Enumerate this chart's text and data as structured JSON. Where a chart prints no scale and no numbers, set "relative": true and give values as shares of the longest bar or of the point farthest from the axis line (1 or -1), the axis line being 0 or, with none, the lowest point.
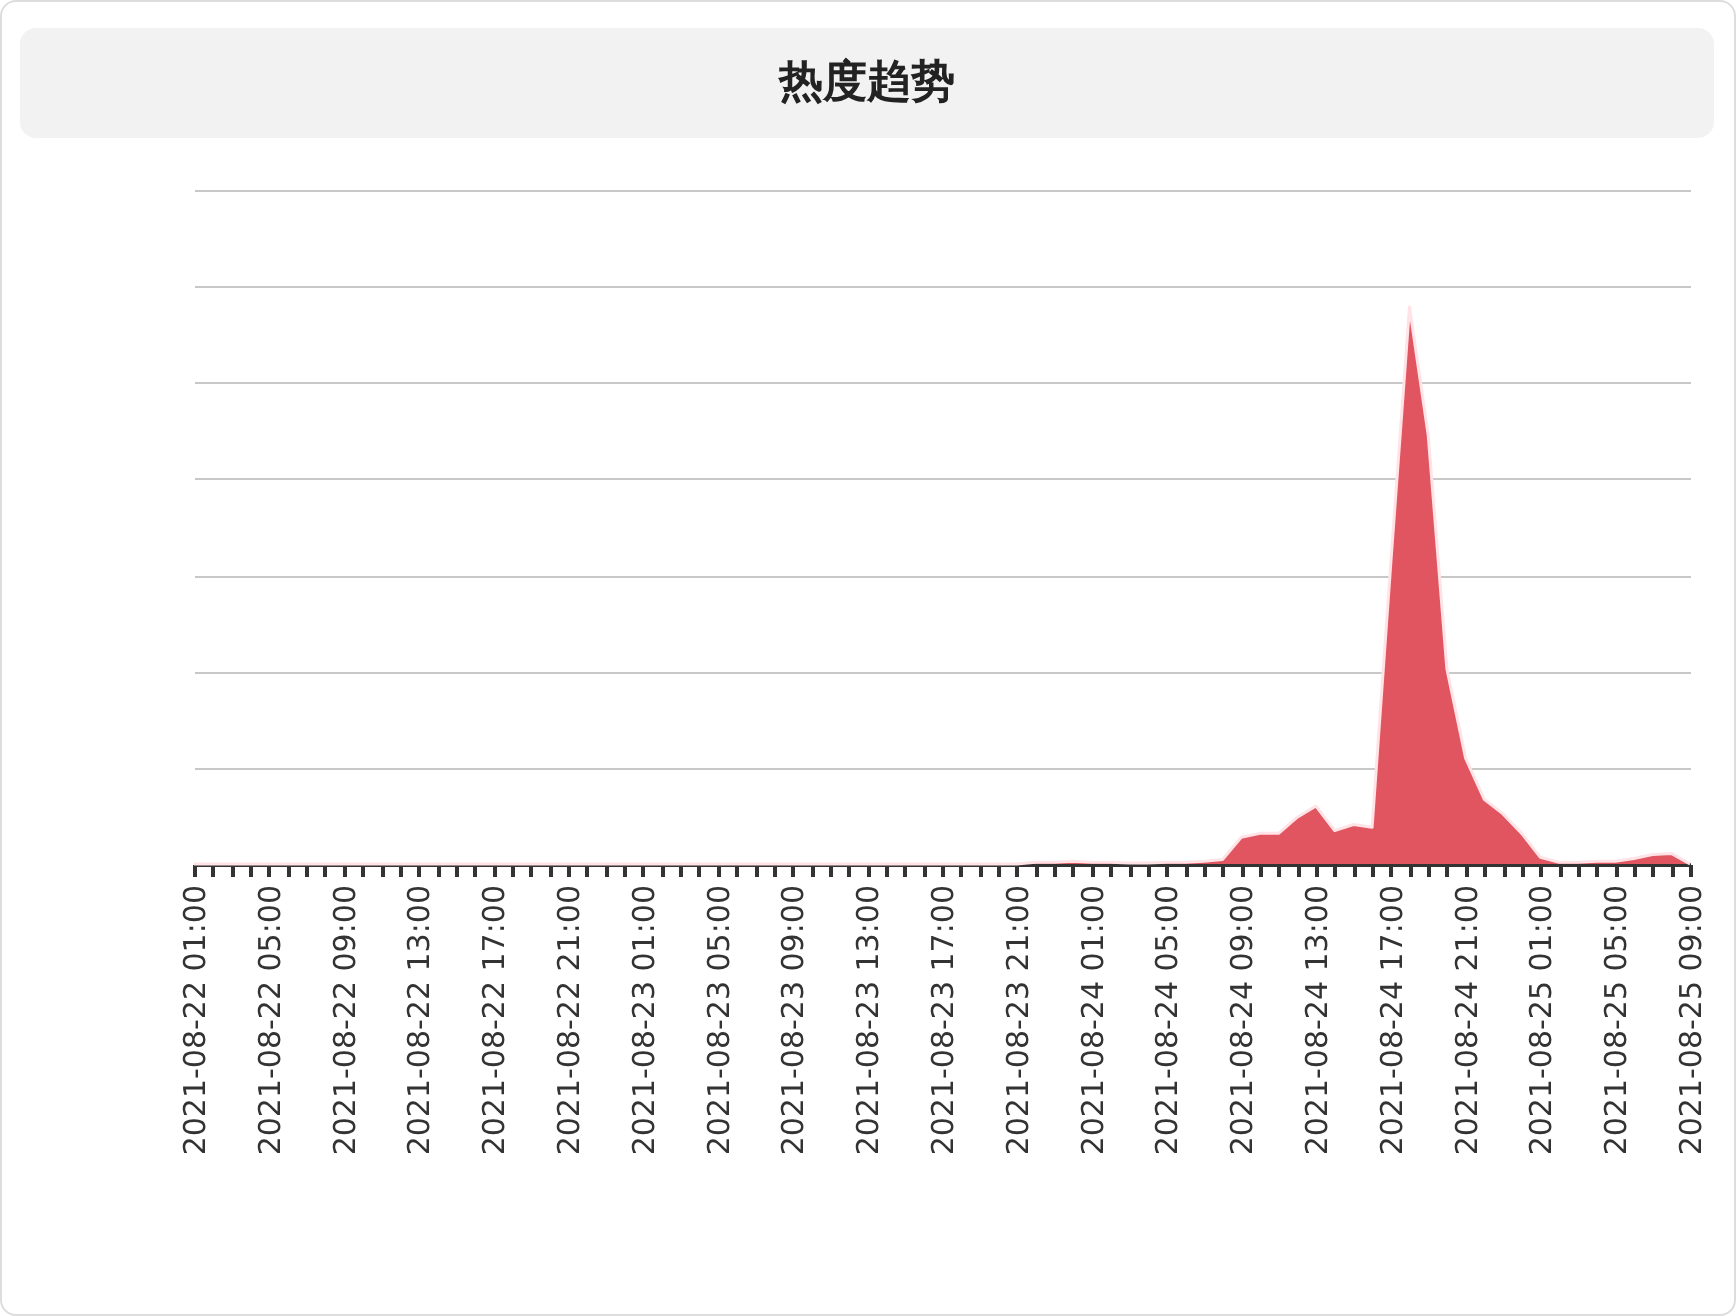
{
  "chart_data": {
    "type": "area",
    "title": "热度趋势",
    "relative": true,
    "grid": "y",
    "categories": [
      "2021-08-22 01:00",
      null,
      null,
      null,
      "2021-08-22 05:00",
      null,
      null,
      null,
      "2021-08-22 09:00",
      null,
      null,
      null,
      "2021-08-22 13:00",
      null,
      null,
      null,
      "2021-08-22 17:00",
      null,
      null,
      null,
      "2021-08-22 21:00",
      null,
      null,
      null,
      "2021-08-23 01:00",
      null,
      null,
      null,
      "2021-08-23 05:00",
      null,
      null,
      null,
      "2021-08-23 09:00",
      null,
      null,
      null,
      "2021-08-23 13:00",
      null,
      null,
      null,
      "2021-08-23 17:00",
      null,
      null,
      null,
      "2021-08-23 21:00",
      null,
      null,
      null,
      "2021-08-24 01:00",
      null,
      null,
      null,
      "2021-08-24 05:00",
      null,
      null,
      null,
      "2021-08-24 09:00",
      null,
      null,
      null,
      "2021-08-24 13:00",
      null,
      null,
      null,
      "2021-08-24 17:00",
      null,
      null,
      null,
      "2021-08-24 21:00",
      null,
      null,
      null,
      "2021-08-25 01:00",
      null,
      null,
      null,
      "2021-08-25 05:00",
      null,
      null,
      null,
      "2021-08-25 09:00"
    ],
    "series": [
      {
        "color": "#e05560",
        "values": [
          0,
          0,
          0,
          0,
          0,
          0,
          0,
          0,
          0,
          0,
          0,
          0,
          0,
          0,
          0,
          0,
          0,
          0,
          0,
          0,
          0,
          0,
          0,
          0,
          0,
          0,
          0,
          0,
          0,
          0,
          0,
          0,
          0,
          0,
          0,
          0,
          0,
          0,
          0,
          0,
          0,
          0,
          0,
          0,
          0,
          0.003,
          0.003,
          0.005,
          0.003,
          0.003,
          0.002,
          0.002,
          0.003,
          0.003,
          0.005,
          0.008,
          0.048,
          0.055,
          0.055,
          0.084,
          0.104,
          0.06,
          0.071,
          0.066,
          0.54,
          1,
          0.77,
          0.35,
          0.19,
          0.116,
          0.09,
          0.055,
          0.012,
          0.003,
          0.003,
          0.005,
          0.005,
          0.01,
          0.017,
          0.019,
          0
        ]
      }
    ]
  }
}
